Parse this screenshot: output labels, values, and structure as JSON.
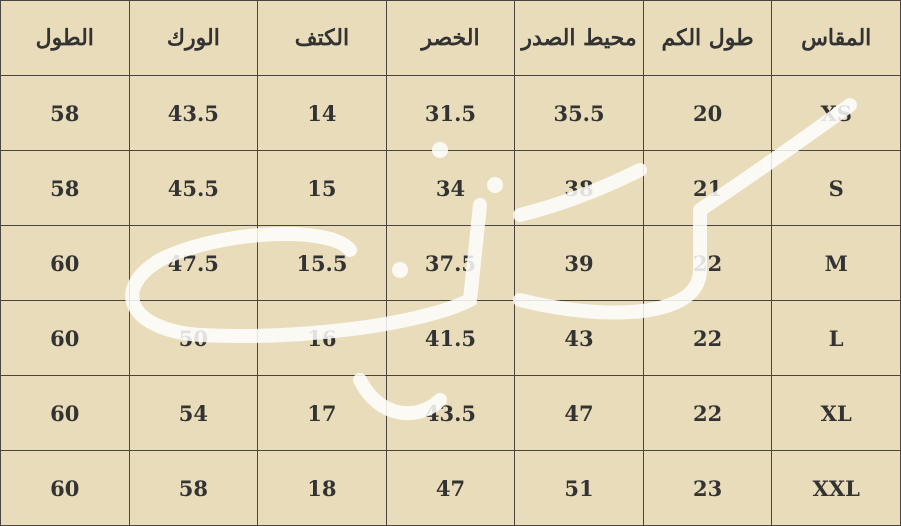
{
  "columns": [
    "الطول",
    "الورك",
    "الكتف",
    "الخصر",
    "محيط الصدر",
    "طول الكم",
    "المقاس"
  ],
  "rows": [
    [
      "58",
      "43.5",
      "14",
      "31.5",
      "35.5",
      "20",
      "XS"
    ],
    [
      "58",
      "45.5",
      "15",
      "34",
      "38",
      "21",
      "S"
    ],
    [
      "60",
      "47.5",
      "15.5",
      "37.5",
      "39",
      "22",
      "M"
    ],
    [
      "60",
      "50",
      "16",
      "41.5",
      "43",
      "22",
      "L"
    ],
    [
      "60",
      "54",
      "17",
      "43.5",
      "47",
      "22",
      "XL"
    ],
    [
      "60",
      "58",
      "18",
      "47",
      "51",
      "23",
      "XXL"
    ]
  ],
  "watermark": {
    "text": "شذاب",
    "color": "#ffffff"
  },
  "colors": {
    "background": "#e8dcba",
    "text": "#333333",
    "border": "#4a4540"
  }
}
